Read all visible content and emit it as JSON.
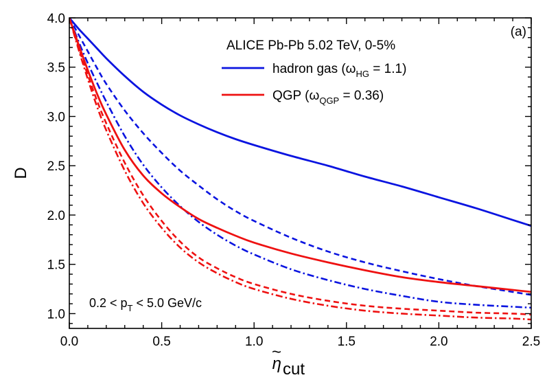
{
  "chart_data": {
    "type": "line",
    "title": "",
    "xlabel_symbol": "η",
    "xlabel_sub": "cut",
    "ylabel": "D",
    "xlim": [
      0.0,
      2.5
    ],
    "ylim": [
      0.85,
      4.0
    ],
    "x_ticks": [
      "0.0",
      "0.5",
      "1.0",
      "1.5",
      "2.0",
      "2.5"
    ],
    "y_ticks": [
      "1.0",
      "1.5",
      "2.0",
      "2.5",
      "3.0",
      "3.5",
      "4.0"
    ],
    "grid": false,
    "legend_position": "top-right",
    "legend_header": "ALICE Pb-Pb 5.02 TeV, 0-5%",
    "panel_label": "(a)",
    "annotation": {
      "pre": "0.2 < p",
      "sub": "T",
      "post": " < 5.0 GeV/c"
    },
    "colors": {
      "hadron_gas": "#0a14e0",
      "qgp": "#ee1111"
    },
    "legend": [
      {
        "series": "hg_solid",
        "pre": "hadron gas (ω",
        "sub": "HG",
        "post": " = 1.1)"
      },
      {
        "series": "qgp_solid",
        "pre": "QGP (ω",
        "sub": "QGP",
        "post": " = 0.36)"
      }
    ],
    "x": [
      0.0,
      0.05,
      0.1,
      0.15,
      0.2,
      0.3,
      0.4,
      0.5,
      0.6,
      0.7,
      0.8,
      0.9,
      1.0,
      1.2,
      1.4,
      1.6,
      1.8,
      2.0,
      2.2,
      2.4,
      2.5
    ],
    "series": [
      {
        "name": "hadron gas (ω_HG = 1.1)",
        "id": "hg_solid",
        "color_key": "hadron_gas",
        "style": "solid",
        "values": [
          4.0,
          3.89,
          3.79,
          3.69,
          3.59,
          3.41,
          3.25,
          3.12,
          3.01,
          2.92,
          2.84,
          2.77,
          2.71,
          2.6,
          2.5,
          2.39,
          2.29,
          2.18,
          2.07,
          1.95,
          1.89
        ]
      },
      {
        "id": "hg_dash",
        "color_key": "hadron_gas",
        "style": "dash",
        "values": [
          4.0,
          3.83,
          3.66,
          3.49,
          3.33,
          3.06,
          2.83,
          2.63,
          2.45,
          2.3,
          2.16,
          2.04,
          1.94,
          1.77,
          1.63,
          1.52,
          1.43,
          1.35,
          1.28,
          1.22,
          1.19
        ]
      },
      {
        "id": "hg_dashdot",
        "color_key": "hadron_gas",
        "style": "dashdot",
        "values": [
          4.0,
          3.76,
          3.54,
          3.34,
          3.15,
          2.8,
          2.51,
          2.28,
          2.09,
          1.93,
          1.8,
          1.69,
          1.6,
          1.45,
          1.34,
          1.25,
          1.18,
          1.12,
          1.09,
          1.07,
          1.06
        ]
      },
      {
        "id": "qgp_solid",
        "color_key": "qgp",
        "style": "solid",
        "values": [
          4.0,
          3.73,
          3.47,
          3.23,
          3.02,
          2.66,
          2.4,
          2.22,
          2.08,
          1.96,
          1.87,
          1.79,
          1.72,
          1.61,
          1.52,
          1.44,
          1.37,
          1.32,
          1.28,
          1.24,
          1.22
        ]
      },
      {
        "id": "qgp_dash",
        "color_key": "qgp",
        "style": "dash",
        "values": [
          4.0,
          3.7,
          3.42,
          3.16,
          2.93,
          2.53,
          2.2,
          1.94,
          1.73,
          1.57,
          1.46,
          1.37,
          1.3,
          1.2,
          1.13,
          1.08,
          1.05,
          1.03,
          1.01,
          1.0,
          0.99
        ]
      },
      {
        "id": "qgp_dashdot",
        "color_key": "qgp",
        "style": "dashdot",
        "values": [
          4.0,
          3.68,
          3.38,
          3.1,
          2.86,
          2.45,
          2.12,
          1.87,
          1.67,
          1.52,
          1.41,
          1.32,
          1.25,
          1.15,
          1.08,
          1.03,
          1.0,
          0.98,
          0.96,
          0.95,
          0.94
        ]
      }
    ]
  }
}
